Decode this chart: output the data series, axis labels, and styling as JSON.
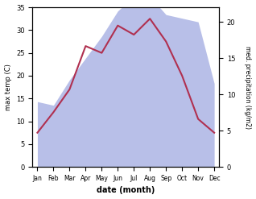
{
  "months": [
    "Jan",
    "Feb",
    "Mar",
    "Apr",
    "May",
    "Jun",
    "Jul",
    "Aug",
    "Sep",
    "Oct",
    "Nov",
    "Dec"
  ],
  "temp": [
    7.5,
    12.0,
    17.0,
    26.5,
    25.0,
    31.0,
    29.0,
    32.5,
    27.5,
    20.0,
    10.5,
    7.5
  ],
  "precip": [
    9.0,
    8.5,
    12.0,
    15.0,
    18.0,
    21.5,
    23.5,
    23.5,
    21.0,
    20.5,
    20.0,
    11.5
  ],
  "temp_color": "#b03050",
  "precip_fill_color": "#b8bfe8",
  "temp_ylim": [
    0,
    35
  ],
  "precip_ylim": [
    0,
    35
  ],
  "right_ylim": [
    0,
    22
  ],
  "right_yticks": [
    0,
    5,
    10,
    15,
    20
  ],
  "left_yticks": [
    0,
    5,
    10,
    15,
    20,
    25,
    30,
    35
  ],
  "xlabel": "date (month)",
  "ylabel_left": "max temp (C)",
  "ylabel_right": "med. precipitation (kg/m2)",
  "temp_linewidth": 1.5,
  "bg_color": "#ffffff",
  "scale_factor": 1.59
}
